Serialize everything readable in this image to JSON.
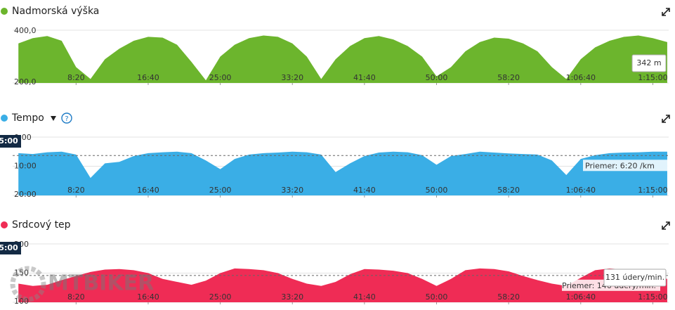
{
  "chart_data": [
    {
      "type": "area",
      "title": "Nadmorská výška",
      "color": "#6cb52d",
      "x": [
        100,
        200,
        300,
        400,
        500,
        600,
        700,
        800,
        900,
        1000,
        1100,
        1200,
        1300,
        1400,
        1500,
        1600,
        1700,
        1800,
        1900,
        2000,
        2100,
        2200,
        2300,
        2400,
        2500,
        2600,
        2700,
        2800,
        2900,
        3000,
        3100,
        3200,
        3300,
        3400,
        3500,
        3600,
        3700,
        3800,
        3900,
        4000,
        4100,
        4200,
        4300,
        4400,
        4500,
        4600
      ],
      "values": [
        350,
        370,
        378,
        360,
        260,
        215,
        290,
        330,
        360,
        375,
        372,
        345,
        280,
        210,
        300,
        345,
        370,
        380,
        375,
        350,
        300,
        215,
        290,
        340,
        370,
        378,
        365,
        340,
        300,
        225,
        260,
        320,
        355,
        372,
        368,
        350,
        320,
        260,
        215,
        290,
        335,
        360,
        375,
        380,
        370,
        355
      ],
      "xlim": [
        60,
        4610
      ],
      "xticks": [
        {
          "value": 500,
          "label": "8:20"
        },
        {
          "value": 1000,
          "label": "16:40"
        },
        {
          "value": 1500,
          "label": "25:00"
        },
        {
          "value": 2000,
          "label": "33:20"
        },
        {
          "value": 2500,
          "label": "41:40"
        },
        {
          "value": 3000,
          "label": "50:00"
        },
        {
          "value": 3500,
          "label": "58:20"
        },
        {
          "value": 4000,
          "label": "1:06:40"
        },
        {
          "value": 4500,
          "label": "1:15:00"
        }
      ],
      "ylim": [
        200,
        400
      ],
      "yticks": [
        {
          "value": 400,
          "label": "400,0"
        },
        {
          "value": 200,
          "label": "200,0"
        }
      ],
      "grid": true,
      "tooltip": "342 m"
    },
    {
      "type": "area",
      "title": "Tempo",
      "color": "#3aaee6",
      "y_inverted": true,
      "x": [
        100,
        200,
        300,
        400,
        500,
        600,
        700,
        800,
        900,
        1000,
        1100,
        1200,
        1300,
        1400,
        1500,
        1600,
        1700,
        1800,
        1900,
        2000,
        2100,
        2200,
        2300,
        2400,
        2500,
        2600,
        2700,
        2800,
        2900,
        3000,
        3100,
        3200,
        3300,
        3400,
        3500,
        3600,
        3700,
        3800,
        3900,
        4000,
        4100,
        4200,
        4300,
        4400,
        4500,
        4600
      ],
      "values": [
        5.5,
        5.8,
        5.2,
        5.0,
        6.0,
        14,
        9,
        8.5,
        6.5,
        5.5,
        5.2,
        5.0,
        5.5,
        8,
        11,
        7.5,
        6.0,
        5.5,
        5.3,
        5.0,
        5.2,
        6.0,
        12,
        9,
        6.5,
        5.3,
        5.0,
        5.2,
        6.2,
        9.5,
        6.5,
        5.8,
        5.0,
        5.3,
        5.6,
        5.8,
        6.0,
        8,
        13,
        7.5,
        6.2,
        5.5,
        5.3,
        5.2,
        5.0,
        5.0
      ],
      "xlim": [
        60,
        4610
      ],
      "xticks": [
        {
          "value": 500,
          "label": "8:20"
        },
        {
          "value": 1000,
          "label": "16:40"
        },
        {
          "value": 1500,
          "label": "25:00"
        },
        {
          "value": 2000,
          "label": "33:20"
        },
        {
          "value": 2500,
          "label": "41:40"
        },
        {
          "value": 3000,
          "label": "50:00"
        },
        {
          "value": 3500,
          "label": "58:20"
        },
        {
          "value": 4000,
          "label": "1:06:40"
        },
        {
          "value": 4500,
          "label": "1:15:00"
        }
      ],
      "ylim": [
        0,
        20
      ],
      "yticks": [
        {
          "value": 0,
          "label": "0:00"
        },
        {
          "value": 10,
          "label": "10:00"
        },
        {
          "value": 20,
          "label": "20:00"
        }
      ],
      "grid": true,
      "average": {
        "value": 6.333,
        "label": "Priemer: 6:20 /km"
      },
      "cursor_label": "5:00"
    },
    {
      "type": "area",
      "title": "Srdcový tep",
      "color": "#ef2c55",
      "x": [
        100,
        200,
        300,
        400,
        500,
        600,
        700,
        800,
        900,
        1000,
        1100,
        1200,
        1300,
        1400,
        1500,
        1600,
        1700,
        1800,
        1900,
        2000,
        2100,
        2200,
        2300,
        2400,
        2500,
        2600,
        2700,
        2800,
        2900,
        3000,
        3100,
        3200,
        3300,
        3400,
        3500,
        3600,
        3700,
        3800,
        3900,
        4000,
        4100,
        4200,
        4300,
        4400,
        4500,
        4600
      ],
      "values": [
        132,
        128,
        130,
        138,
        145,
        152,
        156,
        157,
        155,
        150,
        140,
        135,
        130,
        137,
        150,
        158,
        157,
        155,
        150,
        140,
        132,
        128,
        135,
        148,
        157,
        156,
        154,
        150,
        140,
        128,
        140,
        155,
        158,
        157,
        153,
        145,
        138,
        132,
        128,
        142,
        155,
        158,
        156,
        150,
        145,
        140
      ],
      "xlim": [
        60,
        4610
      ],
      "xticks": [
        {
          "value": 500,
          "label": "8:20"
        },
        {
          "value": 1000,
          "label": "16:40"
        },
        {
          "value": 1500,
          "label": "25:00"
        },
        {
          "value": 2000,
          "label": "33:20"
        },
        {
          "value": 2500,
          "label": "41:40"
        },
        {
          "value": 3000,
          "label": "50:00"
        },
        {
          "value": 3500,
          "label": "58:20"
        },
        {
          "value": 4000,
          "label": "1:06:40"
        },
        {
          "value": 4500,
          "label": "1:15:00"
        }
      ],
      "ylim": [
        100,
        200
      ],
      "yticks": [
        200,
        150,
        100
      ],
      "grid": true,
      "average": {
        "value": 146,
        "label": "Priemer: 146 údery/min."
      },
      "tooltip": "131 údery/min.",
      "cursor_label": "5:00",
      "watermark": "MTBIKER"
    }
  ]
}
